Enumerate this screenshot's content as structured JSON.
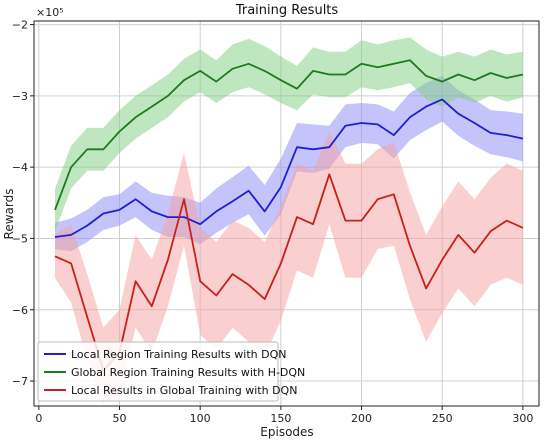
{
  "chart_data": {
    "type": "line",
    "title": "Training Results",
    "xlabel": "Episodes",
    "ylabel": "Rewards",
    "y_scale_note": "×10⁵",
    "xlim": [
      -3,
      310
    ],
    "ylim": [
      -7.35,
      -1.95
    ],
    "x_ticks": [
      0,
      50,
      100,
      150,
      200,
      250,
      300
    ],
    "y_ticks": [
      -7,
      -6,
      -5,
      -4,
      -3,
      -2
    ],
    "y_tick_labels": [
      "−7",
      "−6",
      "−5",
      "−4",
      "−3",
      "−2"
    ],
    "grid": true,
    "legend_position": "bottom-left",
    "series": [
      {
        "name": "Local Region Training Results with DQN",
        "color": "#1f1fd0",
        "band_color": "#8a8af5",
        "x": [
          10,
          20,
          30,
          40,
          50,
          60,
          70,
          80,
          90,
          100,
          110,
          120,
          130,
          140,
          150,
          160,
          170,
          180,
          190,
          200,
          210,
          220,
          230,
          240,
          250,
          260,
          270,
          280,
          290,
          300
        ],
        "values": [
          -4.98,
          -4.95,
          -4.82,
          -4.65,
          -4.6,
          -4.45,
          -4.62,
          -4.7,
          -4.7,
          -4.8,
          -4.62,
          -4.48,
          -4.33,
          -4.62,
          -4.28,
          -3.72,
          -3.75,
          -3.72,
          -3.42,
          -3.38,
          -3.4,
          -3.55,
          -3.3,
          -3.15,
          -3.05,
          -3.25,
          -3.38,
          -3.52,
          -3.55,
          -3.6
        ],
        "upper": [
          -4.78,
          -4.72,
          -4.6,
          -4.42,
          -4.38,
          -4.2,
          -4.36,
          -4.4,
          -4.42,
          -4.5,
          -4.3,
          -4.14,
          -3.98,
          -4.25,
          -3.88,
          -3.38,
          -3.4,
          -3.42,
          -3.12,
          -3.1,
          -3.12,
          -3.22,
          -2.96,
          -2.82,
          -2.72,
          -2.92,
          -3.05,
          -3.2,
          -3.22,
          -3.25
        ],
        "lower": [
          -5.15,
          -5.18,
          -5.05,
          -4.88,
          -4.82,
          -4.7,
          -4.88,
          -4.98,
          -4.98,
          -5.08,
          -4.92,
          -4.78,
          -4.66,
          -4.96,
          -4.66,
          -4.06,
          -4.08,
          -4.02,
          -3.72,
          -3.66,
          -3.68,
          -3.88,
          -3.62,
          -3.48,
          -3.36,
          -3.56,
          -3.7,
          -3.82,
          -3.86,
          -3.92
        ]
      },
      {
        "name": "Global Region Training Results with H-DQN",
        "color": "#1f7a1f",
        "band_color": "#7fd07f",
        "x": [
          10,
          20,
          30,
          40,
          50,
          60,
          70,
          80,
          90,
          100,
          110,
          120,
          130,
          140,
          150,
          160,
          170,
          180,
          190,
          200,
          210,
          220,
          230,
          240,
          250,
          260,
          270,
          280,
          290,
          300
        ],
        "values": [
          -4.6,
          -4.0,
          -3.75,
          -3.75,
          -3.5,
          -3.3,
          -3.15,
          -3.0,
          -2.78,
          -2.65,
          -2.8,
          -2.62,
          -2.55,
          -2.65,
          -2.78,
          -2.9,
          -2.65,
          -2.7,
          -2.7,
          -2.55,
          -2.6,
          -2.55,
          -2.5,
          -2.72,
          -2.8,
          -2.7,
          -2.78,
          -2.68,
          -2.75,
          -2.7
        ],
        "upper": [
          -4.3,
          -3.7,
          -3.45,
          -3.45,
          -3.2,
          -3.0,
          -2.85,
          -2.7,
          -2.48,
          -2.35,
          -2.5,
          -2.28,
          -2.2,
          -2.3,
          -2.45,
          -2.58,
          -2.32,
          -2.38,
          -2.38,
          -2.22,
          -2.28,
          -2.22,
          -2.18,
          -2.35,
          -2.45,
          -2.38,
          -2.45,
          -2.35,
          -2.42,
          -2.38
        ],
        "lower": [
          -4.9,
          -4.3,
          -4.05,
          -4.05,
          -3.8,
          -3.6,
          -3.45,
          -3.3,
          -3.08,
          -2.95,
          -3.1,
          -2.95,
          -2.88,
          -2.98,
          -3.1,
          -3.2,
          -2.98,
          -3.02,
          -3.02,
          -2.88,
          -2.92,
          -2.88,
          -2.82,
          -3.05,
          -3.15,
          -3.02,
          -3.1,
          -3.0,
          -3.08,
          -3.02
        ]
      },
      {
        "name": "Local Results in Global Training with DQN",
        "color": "#c8201a",
        "band_color": "#f5a0a0",
        "x": [
          10,
          20,
          30,
          40,
          50,
          60,
          70,
          80,
          90,
          100,
          110,
          120,
          130,
          140,
          150,
          160,
          170,
          180,
          190,
          200,
          210,
          220,
          230,
          240,
          250,
          260,
          270,
          280,
          290,
          300
        ],
        "values": [
          -5.25,
          -5.35,
          -6.1,
          -6.85,
          -6.6,
          -5.6,
          -5.95,
          -5.3,
          -4.45,
          -5.6,
          -5.8,
          -5.5,
          -5.65,
          -5.85,
          -5.35,
          -4.7,
          -4.8,
          -4.1,
          -4.75,
          -4.75,
          -4.45,
          -4.38,
          -5.1,
          -5.7,
          -5.3,
          -4.95,
          -5.2,
          -4.9,
          -4.75,
          -4.85
        ],
        "upper": [
          -4.95,
          -4.8,
          -5.5,
          -6.25,
          -6.0,
          -4.95,
          -5.3,
          -4.65,
          -3.8,
          -4.85,
          -5.05,
          -4.75,
          -4.85,
          -5.05,
          -4.55,
          -3.95,
          -4.05,
          -3.5,
          -3.95,
          -3.95,
          -3.75,
          -3.65,
          -4.35,
          -4.95,
          -4.55,
          -4.2,
          -4.45,
          -4.15,
          -3.95,
          -4.05
        ],
        "lower": [
          -5.55,
          -5.9,
          -6.7,
          -7.3,
          -7.2,
          -6.25,
          -6.6,
          -5.95,
          -5.1,
          -6.35,
          -6.55,
          -6.25,
          -6.45,
          -6.65,
          -6.15,
          -5.45,
          -5.55,
          -4.8,
          -5.55,
          -5.55,
          -5.15,
          -5.1,
          -5.85,
          -6.45,
          -6.05,
          -5.7,
          -5.95,
          -5.65,
          -5.55,
          -5.65
        ]
      }
    ]
  }
}
